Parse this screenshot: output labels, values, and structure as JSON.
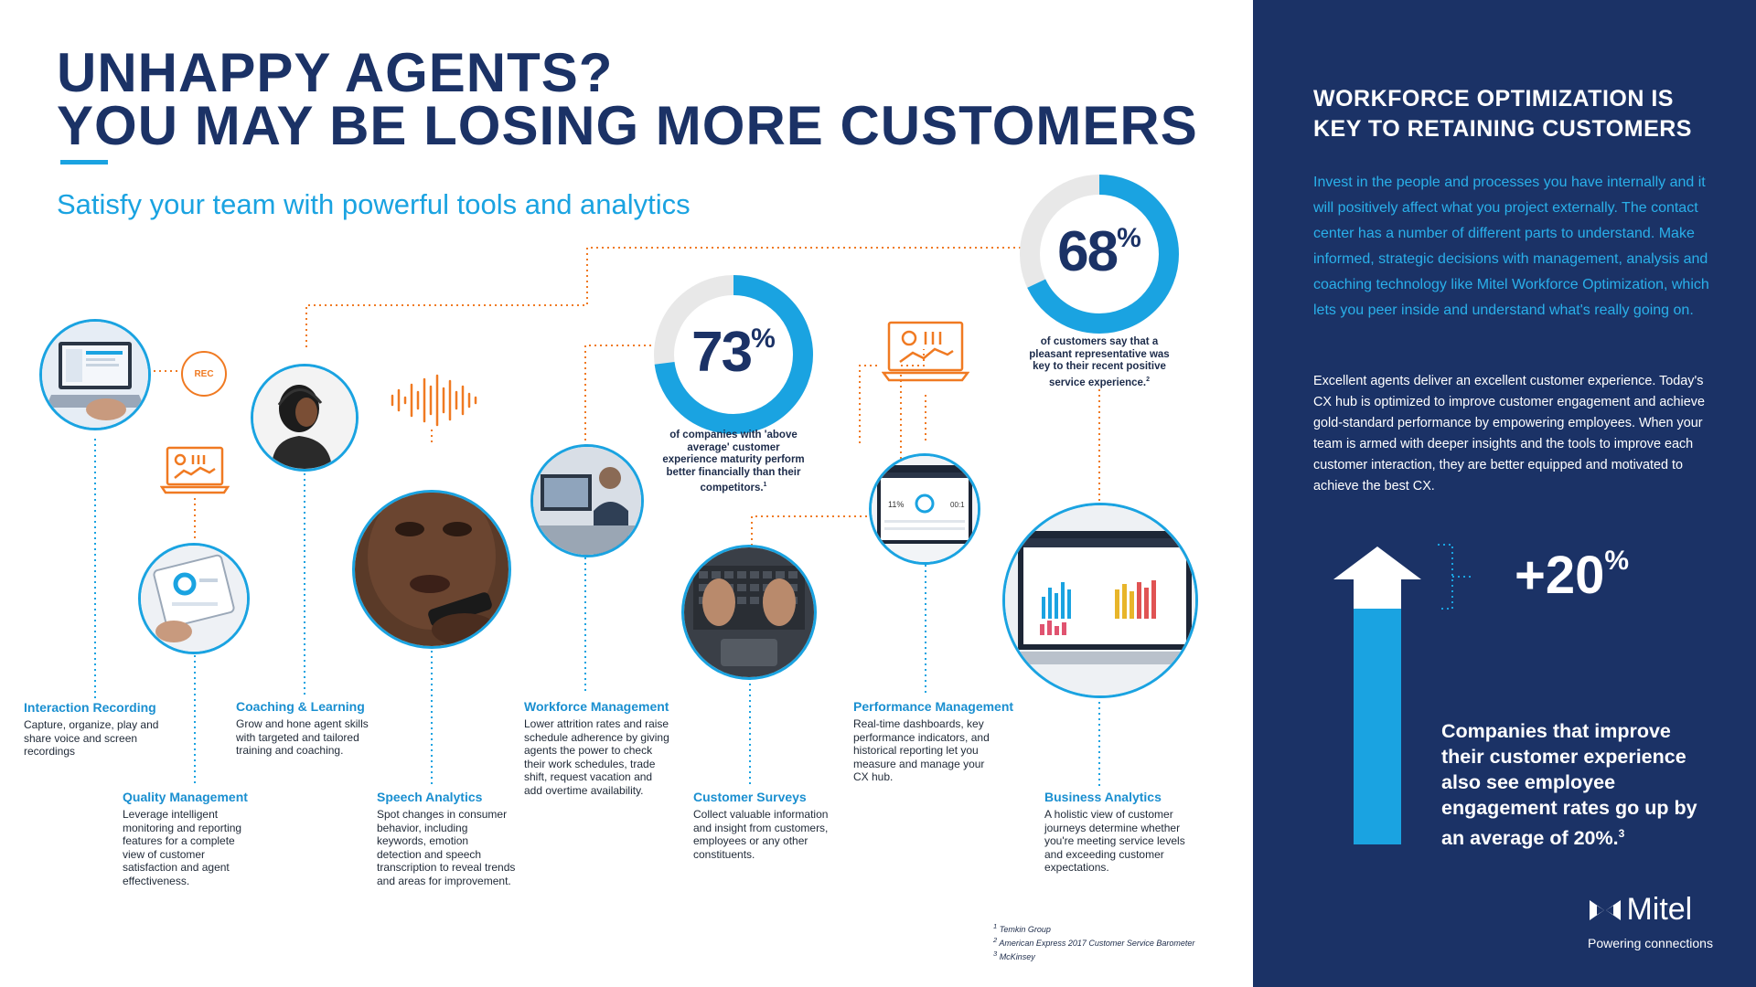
{
  "header": {
    "title_line1": "UNHAPPY AGENTS?",
    "title_line2": "YOU MAY BE LOSING MORE CUSTOMERS",
    "subtitle": "Satisfy your team with powerful tools and analytics"
  },
  "rec_badge": "REC",
  "modules": {
    "interaction_recording": {
      "title": "Interaction Recording",
      "desc": "Capture, organize, play and share voice and screen recordings"
    },
    "quality_management": {
      "title": "Quality Management",
      "desc": "Leverage intelligent monitoring and reporting features for a complete view of customer satisfaction and agent effectiveness."
    },
    "coaching_learning": {
      "title": "Coaching & Learning",
      "desc": "Grow and hone agent skills with targeted and tailored training and coaching."
    },
    "speech_analytics": {
      "title": "Speech Analytics",
      "desc": "Spot changes in consumer behavior, including keywords, emotion detection and speech transcription to reveal trends and areas for improvement."
    },
    "workforce_management": {
      "title": "Workforce Management",
      "desc": "Lower attrition rates and raise schedule adherence by giving agents the power to check their work schedules, trade shift, request vacation and add overtime availability."
    },
    "customer_surveys": {
      "title": "Customer Surveys",
      "desc": "Collect valuable information and insight from customers, employees or any other constituents."
    },
    "performance_management": {
      "title": "Performance Management",
      "desc": "Real-time dashboards, key performance indicators, and historical reporting let you measure and manage your CX hub."
    },
    "business_analytics": {
      "title": "Business Analytics",
      "desc": "A holistic view of customer journeys determine whether you're meeting service levels and exceeding customer expectations."
    }
  },
  "stats": {
    "s73": {
      "number": "73",
      "unit": "%",
      "fraction": 0.73,
      "caption": "of companies with 'above average' customer experience maturity perform better financially than their competitors.",
      "ref": "1"
    },
    "s68": {
      "number": "68",
      "unit": "%",
      "fraction": 0.68,
      "caption": "of customers say that a pleasant representative was key to their recent positive service experience.",
      "ref": "2"
    }
  },
  "panel": {
    "title_line1": "WORKFORCE OPTIMIZATION IS",
    "title_line2": "KEY TO RETAINING CUSTOMERS",
    "para1": "Invest in the people and processes you have internally and it will positively affect what you project externally. The contact center has a number of different parts to understand. Make informed, strategic decisions with management, analysis and coaching technology like Mitel Workforce Optimization, which lets you peer inside and understand what's really going on.",
    "para2": "Excellent agents deliver an excellent customer experience. Today's CX hub is optimized to improve customer engagement and achieve gold-standard performance by empowering employees. When your team is armed with deeper insights and the tools to improve each customer interaction, they are better equipped and motivated to achieve the best CX.",
    "big_number": "+20",
    "big_unit": "%",
    "stat_text": "Companies that improve their customer experience also see employee engagement rates go up by an average of 20%.",
    "stat_ref": "3"
  },
  "brand": {
    "name": "Mitel",
    "tagline": "Powering connections"
  },
  "footnotes": [
    {
      "num": "1",
      "text": "Temkin Group"
    },
    {
      "num": "2",
      "text": "American Express 2017 Customer Service Barometer"
    },
    {
      "num": "3",
      "text": "McKinsey"
    }
  ],
  "colors": {
    "navy": "#1b3266",
    "blue": "#1aa3e1",
    "orange": "#f07a22",
    "grey": "#e8e8e8"
  }
}
